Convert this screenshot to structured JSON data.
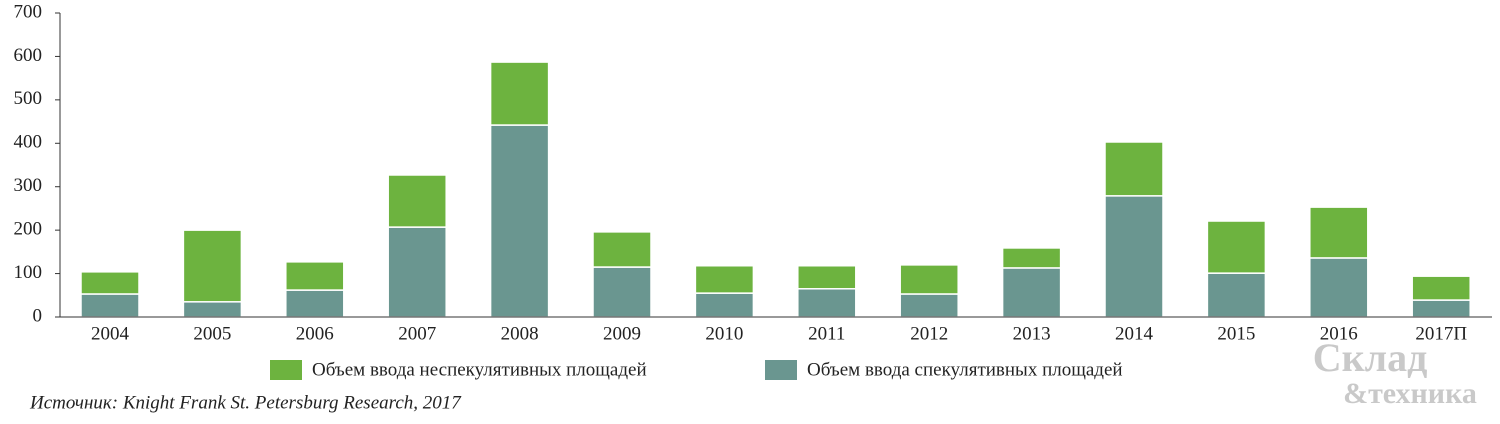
{
  "chart_data": {
    "type": "stacked_bar",
    "categories": [
      "2004",
      "2005",
      "2006",
      "2007",
      "2008",
      "2009",
      "2010",
      "2011",
      "2012",
      "2013",
      "2014",
      "2015",
      "2016",
      "2017П"
    ],
    "series": [
      {
        "name": "Объем ввода неспекулятивных площадей",
        "color": "#6db33f",
        "values": [
          51,
          165,
          65,
          120,
          145,
          81,
          63,
          53,
          67,
          46,
          124,
          120,
          117,
          55
        ]
      },
      {
        "name": "Объем ввода спекулятивных площадей",
        "color": "#6a9690",
        "values": [
          53,
          35,
          62,
          207,
          442,
          115,
          55,
          65,
          53,
          113,
          279,
          101,
          136,
          39
        ]
      }
    ],
    "ylim": [
      0,
      700
    ],
    "yticks": [
      0,
      100,
      200,
      300,
      400,
      500,
      600,
      700
    ],
    "source": "Источник: Knight Frank St. Petersburg Research, 2017",
    "logo": [
      "Склад",
      "&техника"
    ]
  }
}
